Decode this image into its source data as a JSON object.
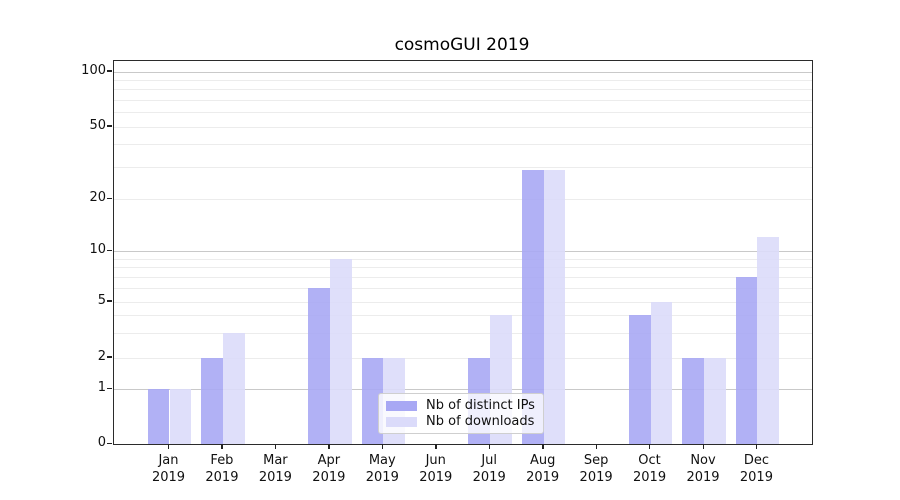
{
  "chart_data": {
    "type": "bar",
    "title": "cosmoGUI 2019",
    "categories": [
      "Jan 2019",
      "Feb 2019",
      "Mar 2019",
      "Apr 2019",
      "May 2019",
      "Jun 2019",
      "Jul 2019",
      "Aug 2019",
      "Sep 2019",
      "Oct 2019",
      "Nov 2019",
      "Dec 2019"
    ],
    "series": [
      {
        "name": "Nb of distinct IPs",
        "color": "#a8a8f4",
        "values": [
          1,
          2,
          0,
          6,
          2,
          0,
          2,
          29,
          0,
          4,
          2,
          7
        ]
      },
      {
        "name": "Nb of downloads",
        "color": "#dbdbfa",
        "values": [
          1,
          3,
          0,
          9,
          2,
          0,
          4,
          29,
          0,
          5,
          2,
          12
        ]
      }
    ],
    "xlabel": "",
    "ylabel": "",
    "yscale": "symlog",
    "yticks": [
      100,
      50,
      20,
      10,
      5,
      2,
      1,
      0
    ],
    "ylim": [
      0,
      115
    ],
    "grid": "horizontal",
    "legend_position": "lower center"
  }
}
